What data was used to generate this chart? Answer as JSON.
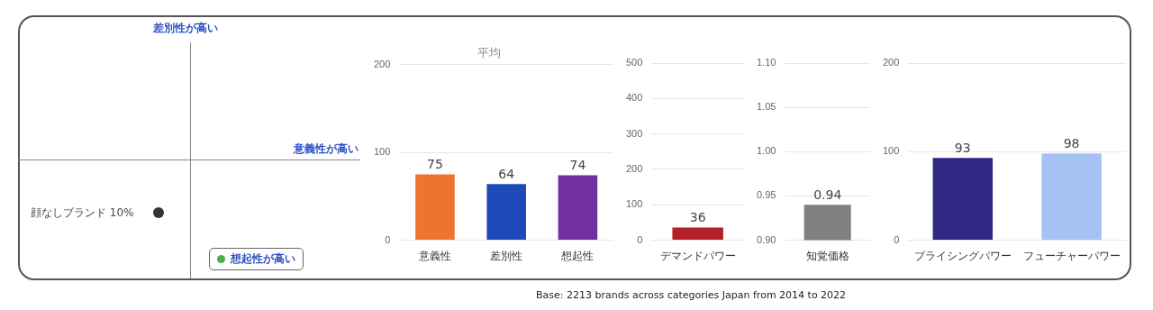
{
  "chart_data": [
    {
      "type": "other",
      "annotations": [
        "差別性が高い",
        "意義性が高い",
        "想起性が高い",
        "顔なしブランド 10%"
      ]
    },
    {
      "type": "bar",
      "title": "平均",
      "categories": [
        "意義性",
        "差別性",
        "想起性"
      ],
      "values": [
        75,
        64,
        74
      ],
      "colors": [
        "#ed7430",
        "#1e4ab8",
        "#7030a0"
      ],
      "ylim": [
        0,
        200
      ],
      "yticks": [
        0,
        100,
        200
      ],
      "grid": "y",
      "data_labels": true
    },
    {
      "type": "bar",
      "categories": [
        "デマンドパワー"
      ],
      "values": [
        36
      ],
      "colors": [
        "#b22028"
      ],
      "ylim": [
        0,
        500
      ],
      "yticks": [
        0,
        100,
        200,
        300,
        400,
        500
      ],
      "grid": "y",
      "data_labels": true
    },
    {
      "type": "bar",
      "categories": [
        "知覚価格"
      ],
      "values": [
        0.94
      ],
      "colors": [
        "#808080"
      ],
      "ylim": [
        0.9,
        1.1
      ],
      "yticks": [
        {
          "value": 0.9,
          "label": "0.90"
        },
        {
          "value": 0.95,
          "label": "0.95"
        },
        {
          "value": 1.0,
          "label": "1.00"
        },
        {
          "value": 1.05,
          "label": "1.05"
        },
        {
          "value": 1.1,
          "label": "1.10"
        }
      ],
      "grid": "y",
      "data_labels": true
    },
    {
      "type": "bar",
      "categories": [
        "プライシングパワー",
        "フューチャーパワー"
      ],
      "values": [
        93,
        98
      ],
      "colors": [
        "#312783",
        "#a4c2f4"
      ],
      "ylim": [
        0,
        200
      ],
      "yticks": [
        0,
        100,
        200
      ],
      "grid": "y",
      "data_labels": true,
      "annotations": [
        "Base: 2213 brands across categories Japan from 2014 to 2022"
      ]
    }
  ]
}
